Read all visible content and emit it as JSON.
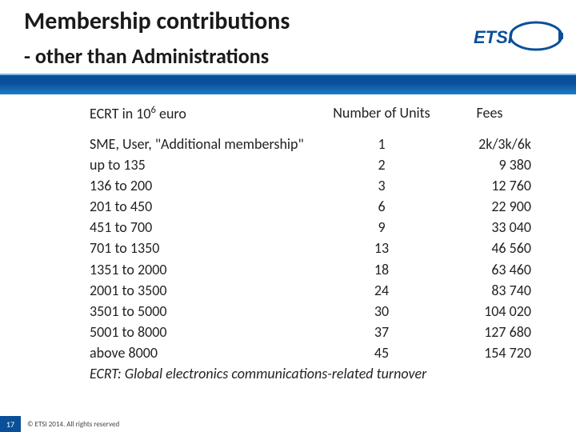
{
  "title": "Membership contributions",
  "subtitle": "- other than Administrations",
  "logo_text": "ETSI",
  "header": {
    "col1_pre": "ECRT in 10",
    "col1_sup": "6",
    "col1_post": " euro",
    "col2": "Number of Units",
    "col3": "Fees"
  },
  "rows": [
    {
      "label": "SME, User, \"Additional membership\"",
      "units": "1",
      "fees": "2k/3k/6k"
    },
    {
      "label": "up to 135",
      "units": "2",
      "fees": "9 380"
    },
    {
      "label": "136 to 200",
      "units": "3",
      "fees": "12 760"
    },
    {
      "label": "201 to 450",
      "units": "6",
      "fees": "22 900"
    },
    {
      "label": "451 to 700",
      "units": "9",
      "fees": "33 040"
    },
    {
      "label": "701 to 1350",
      "units": "13",
      "fees": "46 560"
    },
    {
      "label": "1351 to 2000",
      "units": "18",
      "fees": "63 460"
    },
    {
      "label": "2001 to 3500",
      "units": "24",
      "fees": "83 740"
    },
    {
      "label": "3501 to 5000",
      "units": "30",
      "fees": "104 020"
    },
    {
      "label": "5001 to 8000",
      "units": "37",
      "fees": "127 680"
    },
    {
      "label": "above 8000",
      "units": "45",
      "fees": "154 720"
    }
  ],
  "footnote": "ECRT: Global electronics communications-related turnover",
  "page_number": "17",
  "copyright": "© ETSI 2014. All rights reserved",
  "colors": {
    "brand_blue": "#0a4f99",
    "brand_blue_light": "#1e7cc7",
    "text": "#1a1a1a"
  },
  "fonts": {
    "title_size_pt": 30,
    "subtitle_size_pt": 26,
    "body_size_pt": 18,
    "footer_size_pt": 9
  }
}
